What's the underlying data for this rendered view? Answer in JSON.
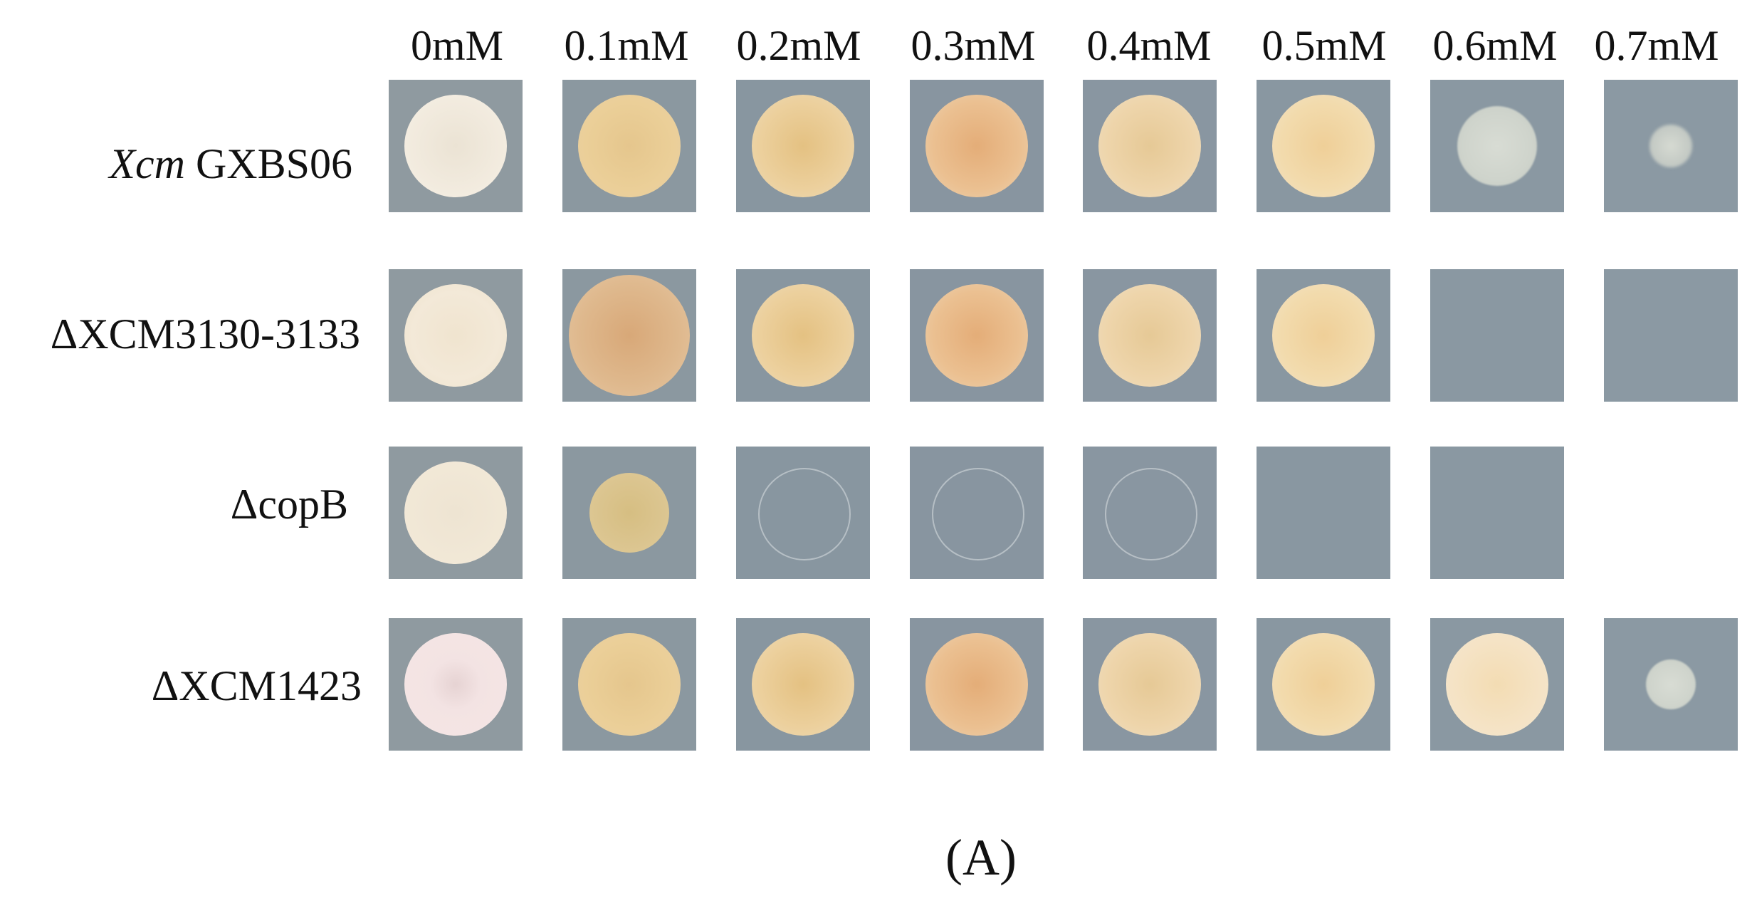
{
  "columns": [
    "0mM",
    "0.1mM",
    "0.2mM",
    "0.3mM",
    "0.4mM",
    "0.5mM",
    "0.6mM",
    "0.7mM"
  ],
  "rows": [
    {
      "label_italic": "Xcm",
      "label_rest": " GXBS06"
    },
    {
      "label_italic": "",
      "label_rest": "ΔXCM3130-3133"
    },
    {
      "label_italic": "",
      "label_rest": "ΔcopB"
    },
    {
      "label_italic": "",
      "label_rest": "ΔXCM1423"
    }
  ],
  "panel_label": "(A)",
  "plate_color": "#8c9aa3",
  "growth": [
    [
      "full",
      "full",
      "full",
      "full",
      "full",
      "full",
      "sparse",
      "trace"
    ],
    [
      "full",
      "full",
      "full",
      "full",
      "full",
      "full",
      "none",
      "none"
    ],
    [
      "full",
      "small",
      "faint",
      "faint",
      "faint",
      "none",
      "none",
      "absent"
    ],
    [
      "full",
      "full",
      "full",
      "full",
      "full",
      "full",
      "full",
      "sparse"
    ]
  ]
}
